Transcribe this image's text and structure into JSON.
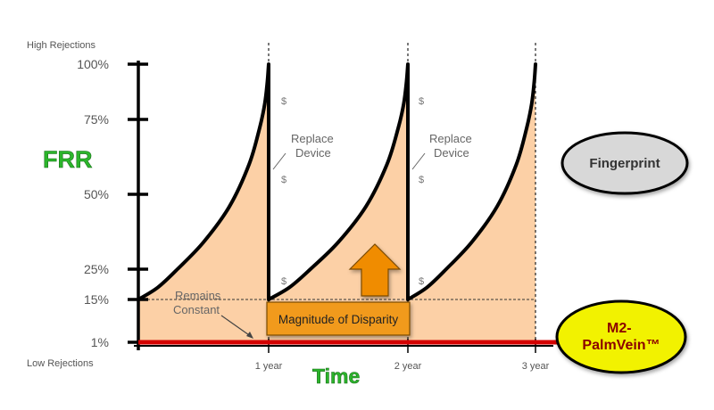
{
  "chart_data": {
    "type": "area",
    "ylabel": "FRR",
    "xlabel": "Time",
    "y_top_label": "High Rejections",
    "y_bottom_label": "Low Rejections",
    "y_ticks": [
      {
        "value": 100,
        "label": "100%"
      },
      {
        "value": 75,
        "label": "75%"
      },
      {
        "value": 50,
        "label": "50%"
      },
      {
        "value": 25,
        "label": "25%"
      },
      {
        "value": 15,
        "label": "15%"
      },
      {
        "value": 1,
        "label": "1%"
      }
    ],
    "x_ticks": [
      {
        "value": 1,
        "label": "1 year"
      },
      {
        "value": 2,
        "label": "2 year"
      },
      {
        "value": 3,
        "label": "3 year"
      }
    ],
    "xlim": [
      0,
      3
    ],
    "series": [
      {
        "name": "Fingerprint",
        "color": "#000000",
        "fill": "#fcd0a6",
        "cycles": [
          {
            "x": [
              0,
              0.15,
              0.3,
              0.5,
              0.7,
              0.85,
              0.93,
              0.97,
              0.99,
              1.0
            ],
            "y": [
              15,
              19,
              25,
              34,
              46,
              60,
              72,
              82,
              92,
              100
            ]
          },
          {
            "x": [
              1,
              1.15,
              1.3,
              1.5,
              1.7,
              1.85,
              1.93,
              1.97,
              1.99,
              2.0
            ],
            "y": [
              15,
              19,
              25,
              34,
              46,
              60,
              72,
              82,
              92,
              100
            ]
          },
          {
            "x": [
              2,
              2.15,
              2.3,
              2.5,
              2.7,
              2.85,
              2.93,
              2.97,
              2.99,
              3.0
            ],
            "y": [
              15,
              19,
              25,
              34,
              46,
              60,
              72,
              82,
              92,
              100
            ]
          }
        ]
      },
      {
        "name": "M2-PalmVein™",
        "color": "#d40000",
        "x": [
          0,
          3
        ],
        "y": [
          1,
          1
        ]
      }
    ],
    "baseline_value": 15,
    "annotations": {
      "replace_device": "Replace\nDevice",
      "dollar": "$",
      "remains_constant": "Remains\nConstant",
      "disparity": "Magnitude of Disparity"
    },
    "legend": {
      "fingerprint": "Fingerprint",
      "palmvein_line1": "M2-",
      "palmvein_line2": "PalmVein™"
    },
    "colors": {
      "curve_fill": "#fcd0a6",
      "arrow_fill": "#f08c00",
      "disparity_box": "#f19a1c",
      "fingerprint_ellipse": "#d8d8d8",
      "palmvein_ellipse": "#f2f200",
      "palmvein_text": "#8b0000",
      "title_green": "#2bb52b"
    }
  }
}
